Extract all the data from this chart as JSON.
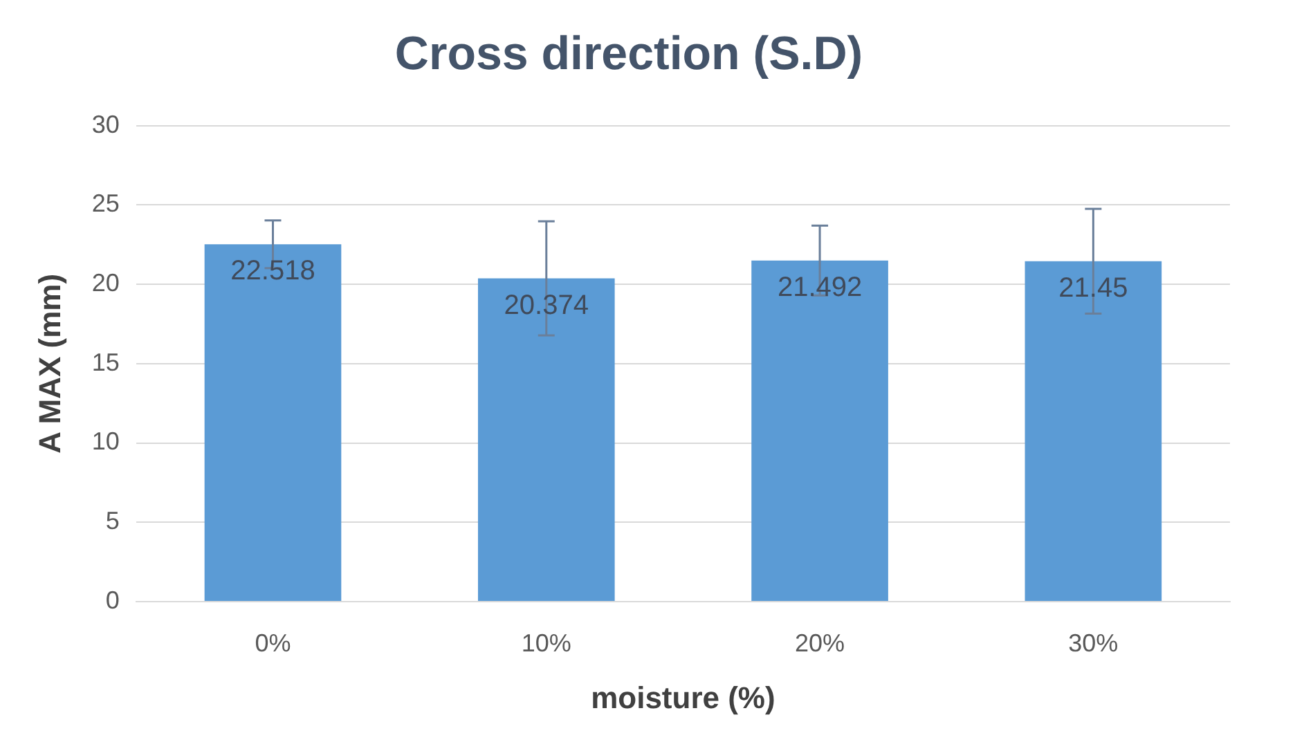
{
  "chart_data": {
    "type": "bar",
    "title": "Cross direction (S.D)",
    "xlabel": "moisture (%)",
    "ylabel": "A MAX (mm)",
    "categories": [
      "0%",
      "10%",
      "20%",
      "30%"
    ],
    "values": [
      22.518,
      20.374,
      21.492,
      21.45
    ],
    "errors": [
      1.5,
      3.6,
      2.2,
      3.3
    ],
    "color": "#5b9bd5",
    "ylim": [
      0,
      30
    ],
    "yticks": [
      0,
      5,
      10,
      15,
      20,
      25,
      30
    ],
    "grid": "y",
    "legend": false,
    "data_labels": true
  }
}
